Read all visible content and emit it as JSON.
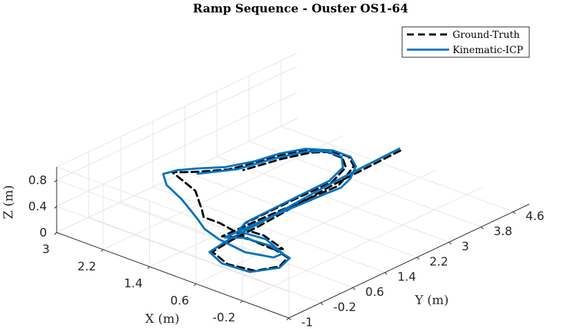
{
  "chart_data": {
    "type": "line",
    "title": "Ramp Sequence - Ouster OS1-64",
    "xlabel": "X (m)",
    "ylabel": "Y (m)",
    "zlabel": "Z (m)",
    "xlim": [
      -1,
      3
    ],
    "ylim": [
      -1,
      5
    ],
    "zlim": [
      0,
      1
    ],
    "xticks": [
      "3",
      "2.2",
      "1.4",
      "0.6",
      "-0.2",
      "-1"
    ],
    "yticks": [
      "-1",
      "-0.2",
      "0.6",
      "1.4",
      "2.2",
      "3",
      "3.8",
      "4.6"
    ],
    "zticks": [
      "0",
      "0.4",
      "0.8"
    ],
    "grid": true,
    "legend_position": "top-right",
    "series": [
      {
        "name": "Ground-Truth",
        "color": "#000000",
        "style": "dashed",
        "points": [
          [
            1.05,
            4.75,
            0.22
          ],
          [
            1.0,
            3.0,
            0.22
          ],
          [
            0.9,
            1.0,
            0.2
          ],
          [
            0.88,
            0.3,
            0.2
          ],
          [
            0.8,
            -0.3,
            0.22
          ],
          [
            0.4,
            -0.5,
            0.22
          ],
          [
            0.0,
            -0.4,
            0.22
          ],
          [
            -0.15,
            0.0,
            0.22
          ],
          [
            -0.05,
            0.35,
            0.22
          ],
          [
            0.4,
            0.5,
            0.22
          ],
          [
            0.8,
            0.45,
            0.22
          ],
          [
            1.05,
            0.3,
            0.2
          ],
          [
            1.05,
            1.5,
            0.18
          ],
          [
            1.05,
            2.8,
            0.14
          ],
          [
            1.05,
            3.2,
            0.13
          ],
          [
            1.2,
            3.6,
            0.1
          ],
          [
            1.4,
            4.1,
            0.06
          ],
          [
            1.7,
            4.4,
            0.02
          ],
          [
            2.0,
            4.4,
            0.0
          ],
          [
            2.25,
            4.2,
            0.0
          ],
          [
            2.35,
            3.7,
            0.04
          ],
          [
            2.3,
            3.0,
            0.14
          ],
          [
            2.25,
            2.2,
            0.28
          ],
          [
            2.25,
            1.5,
            0.45
          ],
          [
            2.2,
            1.0,
            0.6
          ],
          [
            2.05,
            0.5,
            0.8
          ],
          [
            1.7,
            0.2,
            0.9
          ],
          [
            1.3,
            0.0,
            0.9
          ],
          [
            1.05,
            -0.2,
            0.75
          ],
          [
            0.95,
            -0.3,
            0.7
          ],
          [
            0.6,
            -0.4,
            0.75
          ],
          [
            0.1,
            -0.45,
            0.7
          ],
          [
            -0.15,
            -0.2,
            0.55
          ],
          [
            0.0,
            0.3,
            0.35
          ],
          [
            0.5,
            0.55,
            0.32
          ],
          [
            0.9,
            0.55,
            0.3
          ],
          [
            1.0,
            0.8,
            0.27
          ],
          [
            1.05,
            2.0,
            0.24
          ],
          [
            1.15,
            3.2,
            0.16
          ],
          [
            1.4,
            3.9,
            0.1
          ],
          [
            1.7,
            4.25,
            0.04
          ],
          [
            2.0,
            4.3,
            0.02
          ],
          [
            2.15,
            4.1,
            0.02
          ],
          [
            2.25,
            3.5,
            0.06
          ],
          [
            2.2,
            2.5,
            0.2
          ]
        ]
      },
      {
        "name": "Kinematic-ICP",
        "color": "#0072BD",
        "style": "solid",
        "points": [
          [
            1.1,
            4.8,
            0.22
          ],
          [
            1.05,
            3.0,
            0.22
          ],
          [
            0.95,
            1.0,
            0.2
          ],
          [
            0.92,
            0.3,
            0.2
          ],
          [
            0.85,
            -0.3,
            0.2
          ],
          [
            0.5,
            -0.5,
            0.2
          ],
          [
            0.05,
            -0.45,
            0.2
          ],
          [
            -0.15,
            0.0,
            0.2
          ],
          [
            -0.05,
            0.4,
            0.2
          ],
          [
            0.4,
            0.55,
            0.2
          ],
          [
            0.8,
            0.5,
            0.2
          ],
          [
            1.0,
            0.3,
            0.2
          ],
          [
            1.0,
            1.5,
            0.18
          ],
          [
            1.0,
            2.8,
            0.14
          ],
          [
            1.0,
            3.2,
            0.12
          ],
          [
            1.15,
            3.65,
            0.08
          ],
          [
            1.4,
            4.15,
            0.04
          ],
          [
            1.7,
            4.45,
            0.0
          ],
          [
            2.0,
            4.45,
            0.0
          ],
          [
            2.3,
            4.2,
            0.0
          ],
          [
            2.4,
            3.7,
            0.04
          ],
          [
            2.35,
            3.0,
            0.14
          ],
          [
            2.3,
            2.2,
            0.3
          ],
          [
            2.3,
            1.5,
            0.48
          ],
          [
            2.3,
            1.0,
            0.6
          ],
          [
            2.2,
            0.5,
            0.72
          ],
          [
            1.9,
            0.15,
            0.75
          ],
          [
            1.5,
            -0.05,
            0.72
          ],
          [
            1.1,
            -0.25,
            0.62
          ],
          [
            0.9,
            -0.35,
            0.55
          ],
          [
            0.55,
            -0.5,
            0.55
          ],
          [
            0.1,
            -0.5,
            0.5
          ],
          [
            -0.15,
            -0.15,
            0.4
          ],
          [
            0.0,
            0.3,
            0.28
          ],
          [
            0.5,
            0.6,
            0.25
          ],
          [
            0.95,
            0.55,
            0.24
          ],
          [
            1.05,
            0.9,
            0.24
          ],
          [
            1.1,
            2.0,
            0.22
          ],
          [
            1.2,
            3.2,
            0.16
          ],
          [
            1.45,
            3.9,
            0.08
          ],
          [
            1.75,
            4.3,
            0.03
          ],
          [
            2.05,
            4.35,
            0.0
          ],
          [
            2.25,
            4.1,
            0.0
          ],
          [
            2.35,
            3.5,
            0.04
          ],
          [
            2.3,
            2.5,
            0.18
          ],
          [
            2.3,
            1.5,
            0.4
          ]
        ]
      }
    ]
  }
}
